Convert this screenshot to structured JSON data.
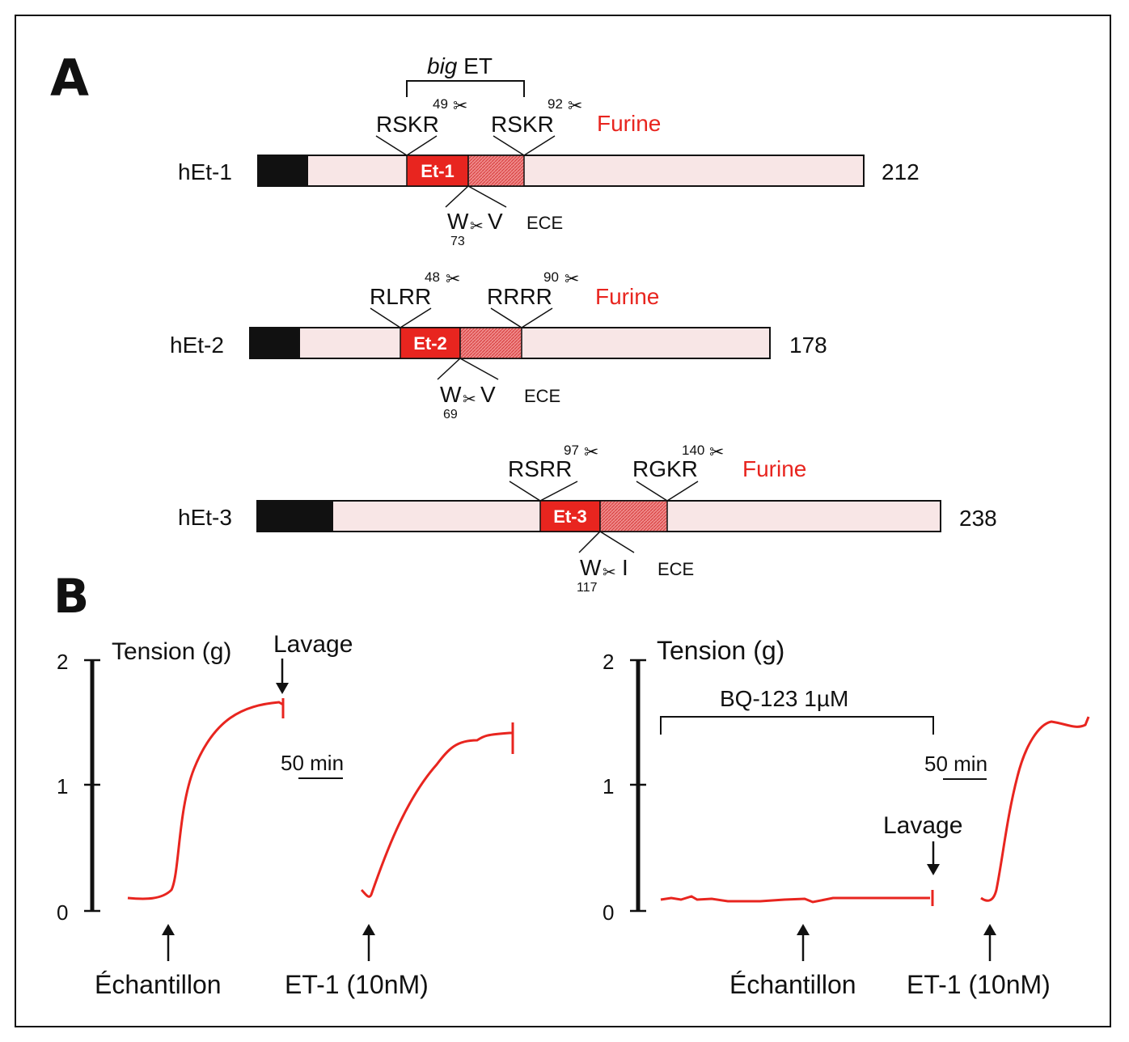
{
  "panel_a": {
    "letter": "A",
    "big_et_label_italic": "big",
    "big_et_label": " ET",
    "constructs": [
      {
        "name": "hEt-1",
        "length": "212",
        "peptide": "Et-1",
        "furin_site_1": {
          "seq": "RSKR",
          "pos": "49"
        },
        "furin_site_2": {
          "seq": "RSKR",
          "pos": "92"
        },
        "furin_label": "Furine",
        "ece_seq_left": "W",
        "ece_seq_right": "V",
        "ece_pos": "73",
        "ece_label": "ECE"
      },
      {
        "name": "hEt-2",
        "length": "178",
        "peptide": "Et-2",
        "furin_site_1": {
          "seq": "RLRR",
          "pos": "48"
        },
        "furin_site_2": {
          "seq": "RRRR",
          "pos": "90"
        },
        "furin_label": "Furine",
        "ece_seq_left": "W",
        "ece_seq_right": "V",
        "ece_pos": "69",
        "ece_label": "ECE"
      },
      {
        "name": "hEt-3",
        "length": "238",
        "peptide": "Et-3",
        "furin_site_1": {
          "seq": "RSRR",
          "pos": "97"
        },
        "furin_site_2": {
          "seq": "RGKR",
          "pos": "140"
        },
        "furin_label": "Furine",
        "ece_seq_left": "W",
        "ece_seq_right": "I",
        "ece_pos": "117",
        "ece_label": "ECE"
      }
    ]
  },
  "panel_b": {
    "letter": "B",
    "left": {
      "y_axis_title": "Tension (g)",
      "y_ticks": [
        "2",
        "1",
        "0"
      ],
      "lavage_label": "Lavage",
      "scale_label": "50 min",
      "arrow_label_1": "Échantillon",
      "arrow_label_2": "ET-1 (10nM)"
    },
    "right": {
      "y_axis_title": "Tension (g)",
      "y_ticks": [
        "2",
        "1",
        "0"
      ],
      "bracket_label": "BQ-123 1µM",
      "lavage_label": "Lavage",
      "scale_label": "50 min",
      "arrow_label_1": "Échantillon",
      "arrow_label_2": "ET-1 (10nM)"
    }
  },
  "colors": {
    "red": "#e8251f",
    "light_pink": "#f8e6e6",
    "hatched_pink": "#e86a6a",
    "black": "#111111"
  }
}
